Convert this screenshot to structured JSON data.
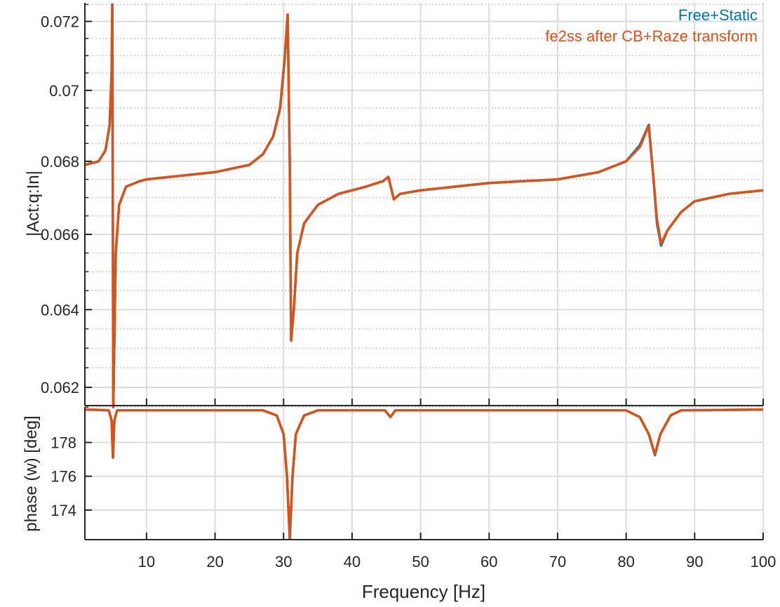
{
  "chart_data": [
    {
      "type": "line",
      "panel": "magnitude",
      "ylabel": "|Act:q:In|",
      "yscale": "log",
      "xlim": [
        1,
        100
      ],
      "ylim": [
        0.06154,
        0.07255
      ],
      "yticks": [
        0.062,
        0.064,
        0.066,
        0.068,
        0.07,
        0.072
      ],
      "ytick_labels": [
        "0.062",
        "0.064",
        "0.066",
        "0.068",
        "0.07",
        "0.072"
      ],
      "grid": true,
      "minor_grid": true,
      "legend_placement": "top-right",
      "series": [
        {
          "name": "Free+Static",
          "color": "#0072BD",
          "x": [
            1,
            3,
            4,
            4.6,
            4.9,
            5.0,
            5.15,
            5.5,
            6,
            7,
            9,
            10,
            20,
            25,
            27,
            28.5,
            29.5,
            30.2,
            30.6,
            30.9,
            31.1,
            31.5,
            32,
            33,
            35,
            38,
            42,
            44.5,
            45.3,
            46.1,
            47,
            50,
            60,
            70,
            76,
            80,
            82,
            83.3,
            84,
            84.5,
            85.1,
            86,
            88,
            90,
            95,
            100
          ],
          "y": [
            0.0679,
            0.068,
            0.0683,
            0.069,
            0.0705,
            0.0725,
            0.0615,
            0.0655,
            0.0668,
            0.0673,
            0.06745,
            0.0675,
            0.0677,
            0.0679,
            0.0682,
            0.0687,
            0.0695,
            0.071,
            0.0722,
            0.068,
            0.0632,
            0.064,
            0.0655,
            0.0663,
            0.0668,
            0.0671,
            0.0673,
            0.06745,
            0.06757,
            0.06695,
            0.0671,
            0.0672,
            0.0674,
            0.0675,
            0.0677,
            0.068,
            0.06845,
            0.06902,
            0.0675,
            0.0663,
            0.0657,
            0.0661,
            0.0666,
            0.0669,
            0.0671,
            0.0672
          ]
        },
        {
          "name": "fe2ss after CB+Raze transform",
          "color": "#D95319",
          "x": [
            1,
            3,
            4,
            4.6,
            4.9,
            5.0,
            5.15,
            5.5,
            6,
            7,
            9,
            10,
            20,
            25,
            27,
            28.5,
            29.5,
            30.2,
            30.6,
            30.9,
            31.1,
            31.5,
            32,
            33,
            35,
            38,
            42,
            44.5,
            45.3,
            46.1,
            47,
            50,
            60,
            70,
            76,
            80,
            82,
            83.3,
            84,
            84.5,
            85.1,
            86,
            88,
            90,
            95,
            100
          ],
          "y": [
            0.0679,
            0.068,
            0.0683,
            0.069,
            0.0705,
            0.0725,
            0.0615,
            0.0655,
            0.0668,
            0.0673,
            0.06745,
            0.0675,
            0.0677,
            0.0679,
            0.0682,
            0.0687,
            0.0695,
            0.071,
            0.0722,
            0.068,
            0.0632,
            0.064,
            0.0655,
            0.0663,
            0.0668,
            0.0671,
            0.0673,
            0.06745,
            0.06757,
            0.06695,
            0.0671,
            0.0672,
            0.0674,
            0.0675,
            0.0677,
            0.068,
            0.0684,
            0.069,
            0.0675,
            0.0664,
            0.06575,
            0.0661,
            0.0666,
            0.0669,
            0.0671,
            0.0672
          ]
        }
      ]
    },
    {
      "type": "line",
      "panel": "phase",
      "xlabel": "Frequency [Hz]",
      "ylabel": "phase (w) [deg]",
      "xlim": [
        1,
        100
      ],
      "ylim": [
        172.25,
        180.1
      ],
      "xticks": [
        10,
        20,
        30,
        40,
        50,
        60,
        70,
        80,
        90,
        100
      ],
      "xtick_labels": [
        "10",
        "20",
        "30",
        "40",
        "50",
        "60",
        "70",
        "80",
        "90",
        "100"
      ],
      "yticks": [
        174,
        176,
        178
      ],
      "ytick_labels": [
        "174",
        "176",
        "178"
      ],
      "grid": true,
      "series": [
        {
          "color": "#0072BD",
          "x": [
            1,
            4.5,
            4.9,
            5.1,
            5.3,
            5.7,
            27,
            29,
            30,
            30.5,
            30.9,
            31.3,
            31.8,
            33,
            35,
            44.8,
            45.6,
            46.3,
            80,
            82,
            83.3,
            84.2,
            85,
            86.5,
            88,
            100
          ],
          "y": [
            179.95,
            179.9,
            179.3,
            177.1,
            179.3,
            179.9,
            179.9,
            179.6,
            178.5,
            176,
            172.3,
            176,
            178.5,
            179.6,
            179.9,
            179.9,
            179.5,
            179.9,
            179.9,
            179.5,
            178.5,
            177.25,
            178.5,
            179.6,
            179.9,
            179.95
          ]
        },
        {
          "color": "#D95319",
          "x": [
            1,
            4.5,
            4.9,
            5.1,
            5.3,
            5.7,
            27,
            29,
            30,
            30.5,
            30.9,
            31.3,
            31.8,
            33,
            35,
            44.8,
            45.6,
            46.3,
            80,
            82,
            83.3,
            84.2,
            85,
            86.5,
            88,
            100
          ],
          "y": [
            179.95,
            179.9,
            179.3,
            177.1,
            179.3,
            179.9,
            179.9,
            179.6,
            178.5,
            176,
            172.3,
            176,
            178.5,
            179.6,
            179.9,
            179.9,
            179.5,
            179.9,
            179.9,
            179.5,
            178.5,
            177.3,
            178.5,
            179.6,
            179.9,
            179.95
          ]
        }
      ]
    }
  ]
}
